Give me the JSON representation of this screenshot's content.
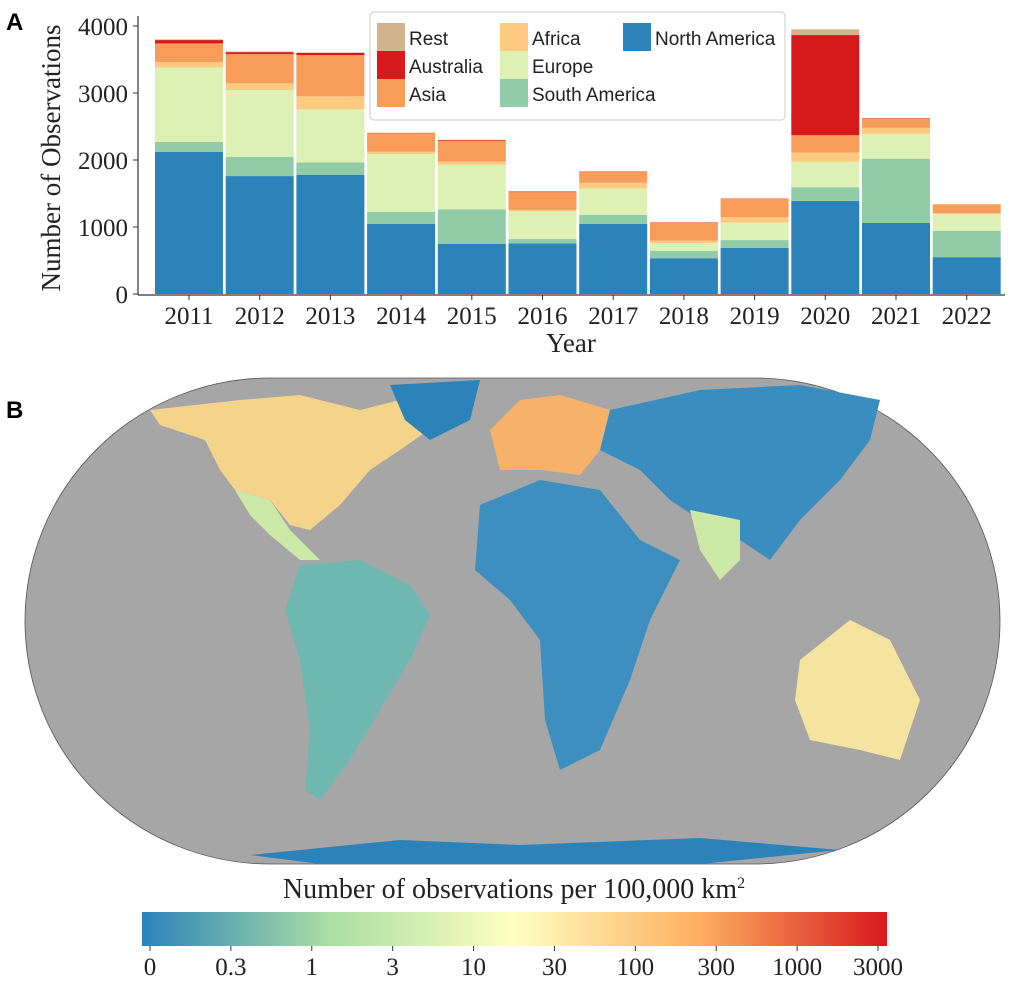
{
  "panels": {
    "a": "A",
    "b": "B"
  },
  "chart_data": [
    {
      "type": "bar",
      "stacked": true,
      "xlabel": "Year",
      "ylabel": "Number of Observations",
      "ylim": [
        0,
        4100
      ],
      "yticks": [
        0,
        1000,
        2000,
        3000,
        4000
      ],
      "categories": [
        "2011",
        "2012",
        "2013",
        "2014",
        "2015",
        "2016",
        "2017",
        "2018",
        "2019",
        "2020",
        "2021",
        "2022"
      ],
      "legend_placement": "top-center",
      "series": [
        {
          "name": "North America",
          "color": "#2b83ba",
          "values": [
            2120,
            1760,
            1780,
            1045,
            750,
            755,
            1045,
            530,
            690,
            1390,
            1060,
            550
          ]
        },
        {
          "name": "South America",
          "color": "#91cba8",
          "values": [
            150,
            285,
            185,
            180,
            515,
            65,
            135,
            115,
            115,
            205,
            960,
            395
          ]
        },
        {
          "name": "Europe",
          "color": "#ddf1b4",
          "values": [
            1110,
            1000,
            790,
            865,
            665,
            415,
            395,
            115,
            260,
            380,
            370,
            245
          ]
        },
        {
          "name": "Africa",
          "color": "#fec980",
          "values": [
            80,
            100,
            195,
            35,
            45,
            20,
            85,
            35,
            80,
            135,
            90,
            15
          ]
        },
        {
          "name": "Asia",
          "color": "#f89d59",
          "values": [
            280,
            435,
            615,
            275,
            315,
            265,
            165,
            270,
            275,
            260,
            140,
            135
          ]
        },
        {
          "name": "Australia",
          "color": "#d7191c",
          "values": [
            50,
            30,
            35,
            5,
            10,
            10,
            5,
            5,
            5,
            1495,
            5,
            0
          ]
        },
        {
          "name": "Rest",
          "color": "#d2b48c",
          "values": [
            10,
            10,
            5,
            0,
            0,
            0,
            0,
            0,
            0,
            85,
            0,
            0
          ]
        }
      ],
      "legend_order": [
        "Rest",
        "Australia",
        "Asia",
        "Africa",
        "Europe",
        "South America",
        "North America"
      ]
    },
    {
      "type": "heatmap",
      "map": "world choropleth (Equal Earth projection)",
      "ocean_color": "#a6a6a6",
      "colorbar": {
        "title": "Number of observations per 100,000 km",
        "title_superscript": "2",
        "scale": "log",
        "colormap": "Spectral_r",
        "ticks": [
          "0",
          "0.3",
          "1",
          "3",
          "10",
          "30",
          "100",
          "300",
          "1000",
          "3000"
        ],
        "colors": [
          "#2b83ba",
          "#abdda4",
          "#ffffbf",
          "#fdae61",
          "#d7191c"
        ]
      }
    }
  ]
}
